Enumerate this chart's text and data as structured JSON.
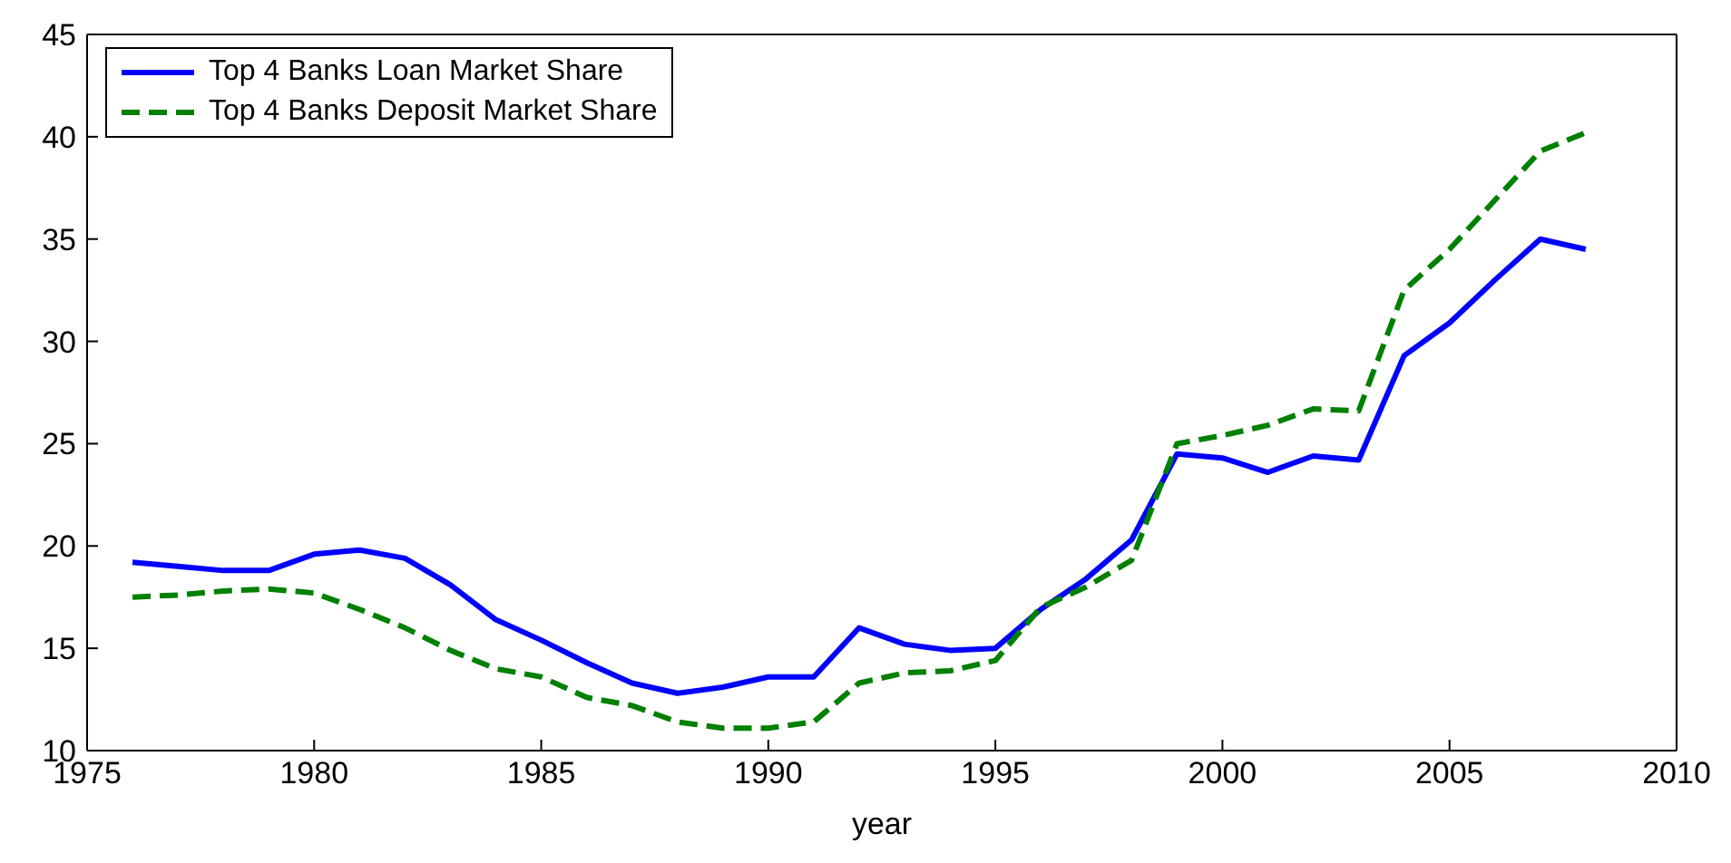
{
  "chart_data": {
    "type": "line",
    "xlabel": "year",
    "x": [
      1976,
      1977,
      1978,
      1979,
      1980,
      1981,
      1982,
      1983,
      1984,
      1985,
      1986,
      1987,
      1988,
      1989,
      1990,
      1991,
      1992,
      1993,
      1994,
      1995,
      1996,
      1997,
      1998,
      1999,
      2000,
      2001,
      2002,
      2003,
      2004,
      2005,
      2006,
      2007,
      2008
    ],
    "series": [
      {
        "name": "Top 4 Banks Loan Market Share",
        "color": "#0000ff",
        "line_style": "solid",
        "values": [
          19.2,
          19.0,
          18.8,
          18.8,
          19.6,
          19.8,
          19.4,
          18.1,
          16.4,
          15.4,
          14.3,
          13.3,
          12.8,
          13.1,
          13.6,
          13.6,
          16.0,
          15.2,
          14.9,
          15.0,
          16.9,
          18.4,
          20.3,
          24.5,
          24.3,
          23.6,
          24.4,
          24.2,
          29.3,
          30.9,
          33.0,
          35.0,
          34.5
        ]
      },
      {
        "name": "Top 4 Banks Deposit Market Share",
        "color": "#008000",
        "line_style": "dashed",
        "values": [
          17.5,
          17.6,
          17.8,
          17.9,
          17.7,
          16.9,
          16.0,
          14.9,
          14.0,
          13.6,
          12.6,
          12.2,
          11.4,
          11.1,
          11.1,
          11.4,
          13.3,
          13.8,
          13.9,
          14.4,
          17.0,
          18.0,
          19.3,
          25.0,
          25.4,
          25.9,
          26.7,
          26.6,
          32.5,
          34.5,
          36.9,
          39.3,
          40.2
        ]
      }
    ],
    "xlim": [
      1975,
      2010
    ],
    "xticks": [
      1975,
      1980,
      1985,
      1990,
      1995,
      2000,
      2005,
      2010
    ],
    "ylim": [
      10,
      45
    ],
    "yticks": [
      10,
      15,
      20,
      25,
      30,
      35,
      40,
      45
    ],
    "grid": false,
    "legend": "top left",
    "marker": "none"
  }
}
